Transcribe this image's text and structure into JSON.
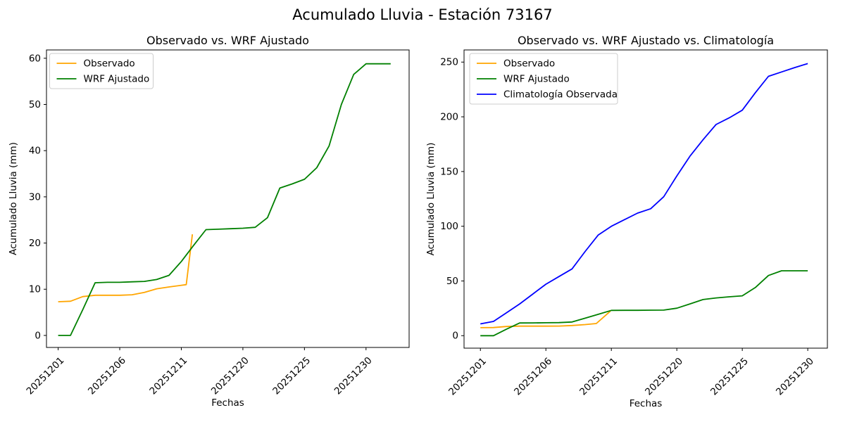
{
  "figure": {
    "title": "Acumulado Lluvia - Estación 73167",
    "background_color": "#ffffff",
    "text_color": "#000000",
    "axis_color": "#000000"
  },
  "chart_data": [
    {
      "type": "line",
      "title": "Observado vs. WRF Ajustado",
      "xlabel": "Fechas",
      "ylabel": "Acumulado Lluvia (mm)",
      "x_tick_labels": [
        "20251201",
        "20251206",
        "20251211",
        "20251220",
        "20251225",
        "20251230"
      ],
      "x_tick_positions": [
        0,
        5,
        10,
        15,
        20,
        25
      ],
      "x_tick_rotation": 45,
      "y_ticks": [
        0,
        10,
        20,
        30,
        40,
        50,
        60
      ],
      "xlim": [
        -0.95,
        28.5
      ],
      "ylim": [
        -2.6,
        61.8
      ],
      "grid": false,
      "legend_position": "upper left",
      "series": [
        {
          "name": "Observado",
          "color": "#FFA500",
          "x": [
            0,
            1,
            2,
            3,
            4,
            5,
            6,
            7,
            8,
            9,
            10.4,
            10.9
          ],
          "y": [
            7.3,
            7.4,
            8.4,
            8.7,
            8.7,
            8.7,
            8.8,
            9.3,
            10.1,
            10.5,
            11.0,
            21.9
          ]
        },
        {
          "name": "WRF Ajustado",
          "color": "#008000",
          "x": [
            0,
            1,
            2,
            3,
            4,
            5,
            6,
            7,
            8,
            9,
            10,
            11,
            12,
            13,
            14,
            15,
            16,
            17,
            18,
            19,
            20,
            21,
            22,
            23,
            24,
            25,
            26,
            27
          ],
          "y": [
            0,
            0,
            5.6,
            11.4,
            11.5,
            11.5,
            11.6,
            11.7,
            12.1,
            13.0,
            16.0,
            19.5,
            22.9,
            23.0,
            23.1,
            23.2,
            23.4,
            25.5,
            31.9,
            32.8,
            33.8,
            36.3,
            41.0,
            50.0,
            56.5,
            58.8,
            58.8,
            58.8
          ]
        }
      ]
    },
    {
      "type": "line",
      "title": "Observado vs. WRF Ajustado vs. Climatología",
      "xlabel": "Fechas",
      "ylabel": "Acumulado Lluvia (mm)",
      "x_tick_labels": [
        "20251201",
        "20251206",
        "20251211",
        "20251220",
        "20251225",
        "20251230"
      ],
      "x_tick_positions": [
        0,
        5,
        10,
        15,
        20,
        25
      ],
      "x_tick_rotation": 45,
      "y_ticks": [
        0,
        50,
        100,
        150,
        200,
        250
      ],
      "xlim": [
        -1.25,
        26.5
      ],
      "ylim": [
        -11.4,
        261.1
      ],
      "grid": false,
      "legend_position": "upper left",
      "series": [
        {
          "name": "Observado",
          "color": "#FFA500",
          "x": [
            0,
            1,
            2,
            3,
            4,
            5,
            6,
            7,
            8,
            8.85,
            9.93
          ],
          "y": [
            7.3,
            7.4,
            8.4,
            8.7,
            8.7,
            8.7,
            8.8,
            9.3,
            10.1,
            11.1,
            22.5
          ]
        },
        {
          "name": "WRF Ajustado",
          "color": "#008000",
          "x": [
            0,
            1,
            2,
            3,
            4,
            5,
            6,
            7,
            8,
            9,
            10,
            11,
            12,
            13,
            14,
            15,
            16,
            17,
            18,
            19,
            20,
            21,
            22,
            23,
            24,
            25
          ],
          "y": [
            0,
            0,
            6.0,
            11.6,
            11.7,
            11.8,
            11.9,
            12.5,
            16.0,
            19.5,
            23.1,
            23.2,
            23.2,
            23.3,
            23.4,
            25.1,
            29.0,
            33.0,
            34.5,
            35.5,
            36.4,
            44.0,
            55.0,
            59.3,
            59.3,
            59.3
          ]
        },
        {
          "name": "Climatología Observada",
          "color": "#0000FF",
          "x": [
            0,
            1,
            2,
            3,
            4,
            5,
            6,
            7,
            8,
            9,
            10,
            11,
            12,
            13,
            14,
            15,
            16,
            17,
            18,
            19,
            20,
            21,
            22,
            23,
            24,
            25
          ],
          "y": [
            10.8,
            13.0,
            21.0,
            29.0,
            38.0,
            47.0,
            54.0,
            61.0,
            77.0,
            92.0,
            100.0,
            106.0,
            112.0,
            116.0,
            127.0,
            146.0,
            164.0,
            179.0,
            193.0,
            199.0,
            206.0,
            222.0,
            237.0,
            241.0,
            245.0,
            248.6
          ]
        }
      ]
    }
  ]
}
